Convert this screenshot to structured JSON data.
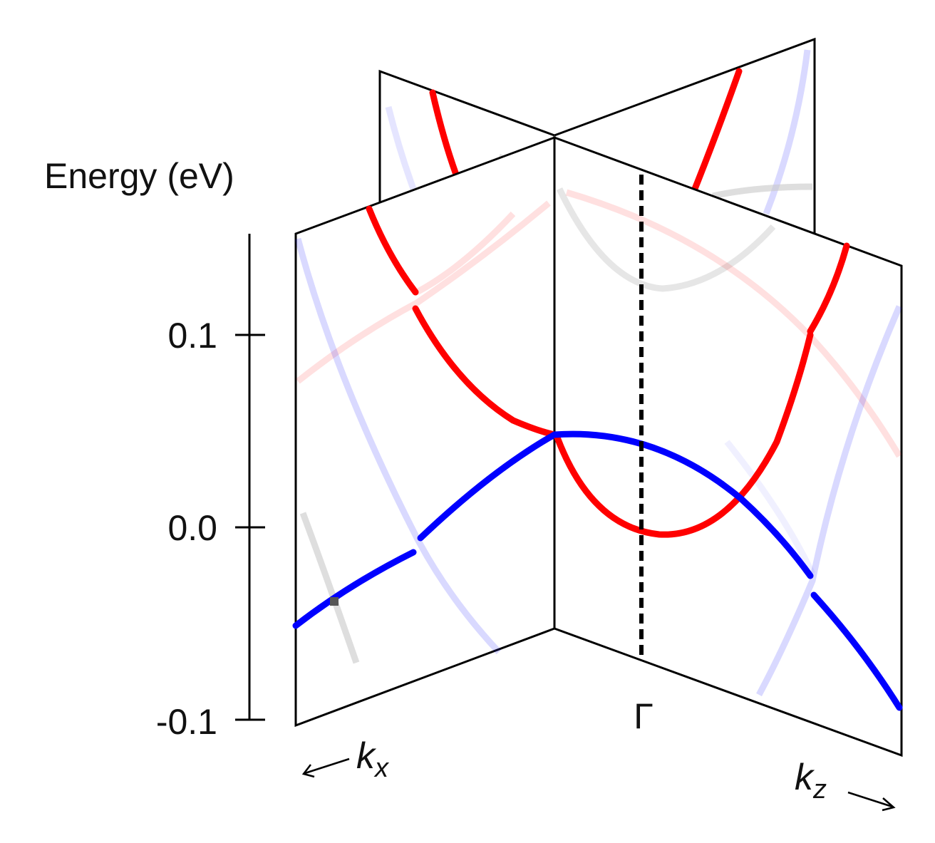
{
  "axis": {
    "title": "Energy (eV)",
    "ticks": [
      {
        "value": 0.1,
        "label": "0.1"
      },
      {
        "value": 0.0,
        "label": "0.0"
      },
      {
        "value": -0.1,
        "label": "-0.1"
      }
    ]
  },
  "labels": {
    "gamma": "Γ",
    "kx_main": "k",
    "kx_sub": "x",
    "kz_main": "k",
    "kz_sub": "z"
  },
  "colors": {
    "conduction": "#ff0000",
    "valence": "#0000ff",
    "frame": "#000000",
    "faded_band": "#c8c8c8"
  }
}
